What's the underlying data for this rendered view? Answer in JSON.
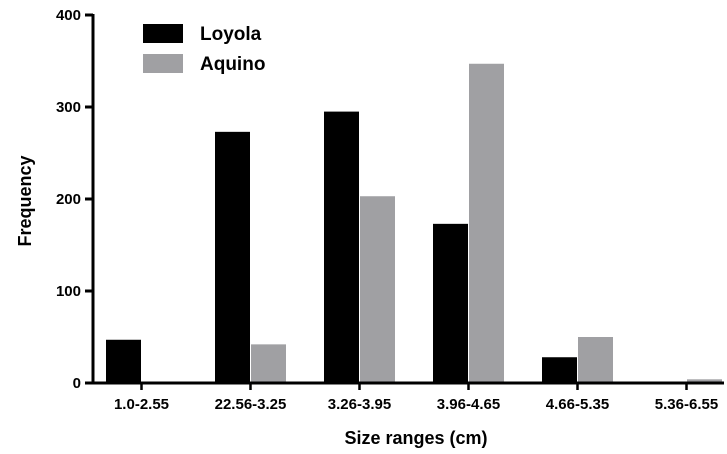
{
  "chart_data": {
    "type": "bar",
    "title": "",
    "xlabel": "Size ranges (cm)",
    "ylabel": "Frequency",
    "ylim": [
      0,
      400
    ],
    "yticks": [
      0,
      100,
      200,
      300,
      400
    ],
    "categories": [
      "1.0-2.55",
      "22.56-3.25",
      "3.26-3.95",
      "3.96-4.65",
      "4.66-5.35",
      "5.36-6.55"
    ],
    "series": [
      {
        "name": "Loyola",
        "color": "#000000",
        "values": [
          47,
          273,
          295,
          173,
          28,
          0
        ]
      },
      {
        "name": "Aquino",
        "color": "#a0a0a3",
        "values": [
          0,
          42,
          203,
          347,
          50,
          4
        ]
      }
    ],
    "legend_position": "top-left",
    "grid": false
  }
}
